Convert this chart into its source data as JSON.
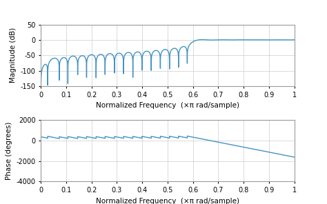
{
  "line_color": "#4393c3",
  "line_width": 1.0,
  "mag_ylim": [
    -150,
    50
  ],
  "mag_yticks": [
    -150,
    -100,
    -50,
    0,
    50
  ],
  "phase_ylim": [
    -4000,
    2000
  ],
  "phase_yticks": [
    -4000,
    -2000,
    0,
    2000
  ],
  "xlim": [
    0,
    1
  ],
  "xticks": [
    0,
    0.1,
    0.2,
    0.3,
    0.4,
    0.5,
    0.6,
    0.7,
    0.8,
    0.9,
    1
  ],
  "xlabel": "Normalized Frequency  (×π rad/sample)",
  "ylabel_mag": "Magnitude (dB)",
  "ylabel_phase": "Phase (degrees)",
  "background_color": "#ffffff",
  "grid_color": "#cccccc",
  "font_size": 7,
  "label_font_size": 7.5
}
